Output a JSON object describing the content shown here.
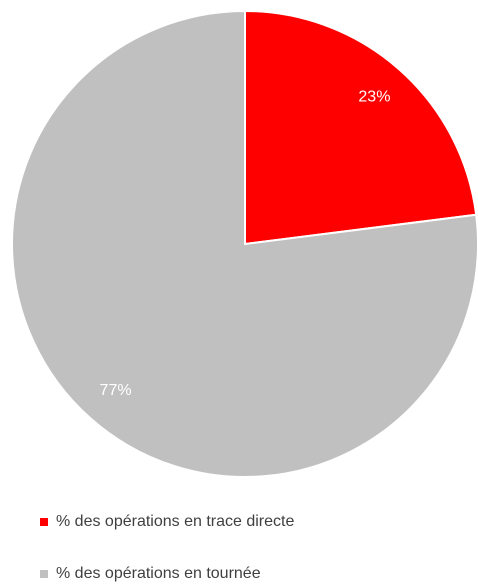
{
  "chart_data": {
    "type": "pie",
    "categories": [
      "% des opérations en trace directe",
      "% des opérations en tournée"
    ],
    "values": [
      23,
      77
    ],
    "value_labels": [
      "23%",
      "77%"
    ],
    "colors": [
      "#ff0000",
      "#c0c0c0"
    ]
  }
}
